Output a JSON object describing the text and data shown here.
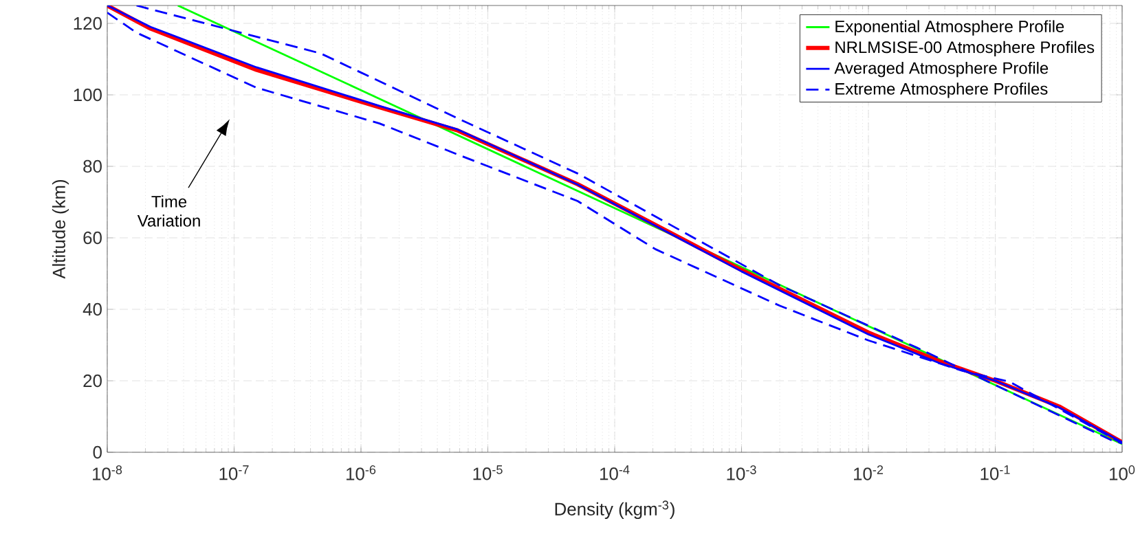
{
  "chart_data": {
    "type": "line",
    "xlabel": "Density (kgm$^{-3}$)",
    "ylabel": "Altitude (km)",
    "log": "x",
    "grid": true,
    "legend": "top right",
    "xlim": [
      1e-08,
      1
    ],
    "ylim": [
      0,
      125
    ],
    "xticks": [
      {
        "value": 1e-08,
        "label": "10$^{-8}$"
      },
      {
        "value": 1e-07,
        "label": "10$^{-7}$"
      },
      {
        "value": 1e-06,
        "label": "10$^{-6}$"
      },
      {
        "value": 1e-05,
        "label": "10$^{-5}$"
      },
      {
        "value": 0.0001,
        "label": "10$^{-4}$"
      },
      {
        "value": 0.001,
        "label": "10$^{-3}$"
      },
      {
        "value": 0.01,
        "label": "10$^{-2}$"
      },
      {
        "value": 0.1,
        "label": "10$^{-1}$"
      },
      {
        "value": 1,
        "label": "10$^{0}$"
      }
    ],
    "yticks": [
      0,
      20,
      40,
      60,
      80,
      100,
      120
    ],
    "annotations": [
      "Time Variation"
    ],
    "series": [
      {
        "name": "Exponential Atmosphere Profile",
        "color": "#00ff00",
        "line_style": "solid",
        "x": [
          3.6e-08,
          1e-06,
          0.0001,
          0.01,
          1
        ],
        "values": [
          125,
          101.3,
          68.3,
          35.3,
          2.3
        ]
      },
      {
        "name": "NRLMSISE-00 Atmosphere Profiles",
        "color": "#ff0000",
        "line_style": "solid",
        "x": [
          1e-08,
          2.2e-08,
          1.5e-07,
          1.4e-06,
          5.8e-06,
          5.1e-05,
          0.001,
          0.01,
          0.036,
          0.1,
          0.32,
          1
        ],
        "values": [
          125,
          118.5,
          107,
          96.5,
          90,
          75,
          51,
          33.5,
          25.5,
          20,
          12.8,
          2.8
        ]
      },
      {
        "name": "Averaged Atmosphere Profile",
        "color": "#0000ff",
        "line_style": "solid",
        "x": [
          1e-08,
          2.2e-08,
          1.5e-07,
          1.4e-06,
          5.8e-06,
          5.1e-05,
          0.001,
          0.01,
          0.036,
          0.1,
          0.32,
          1
        ],
        "values": [
          125,
          119,
          107.7,
          96.9,
          90.3,
          74.9,
          50.6,
          33,
          25,
          20,
          12.5,
          2.8
        ]
      },
      {
        "name": "Extreme Atmosphere Profiles",
        "color": "#0000ff",
        "line_style": "dashed",
        "x": [
          1.7e-08,
          4.8e-07,
          5.8e-06,
          5.1e-05,
          0.002,
          0.024,
          0.085,
          0.81,
          1
        ],
        "values": [
          125,
          111.6,
          93.4,
          78,
          46.7,
          29.3,
          20,
          3.5,
          2.5
        ]
      },
      {
        "color": "#0000ff",
        "line_style": "dashed",
        "x": [
          1e-08,
          1.7e-08,
          1.5e-07,
          1.4e-06,
          5.8e-06,
          5.1e-05,
          0.00021,
          0.002,
          0.01,
          0.055,
          0.13,
          1
        ],
        "values": [
          123,
          117.4,
          102,
          92,
          83.3,
          70.3,
          56.8,
          41,
          31.3,
          22.8,
          19.7,
          2.5
        ]
      }
    ]
  }
}
